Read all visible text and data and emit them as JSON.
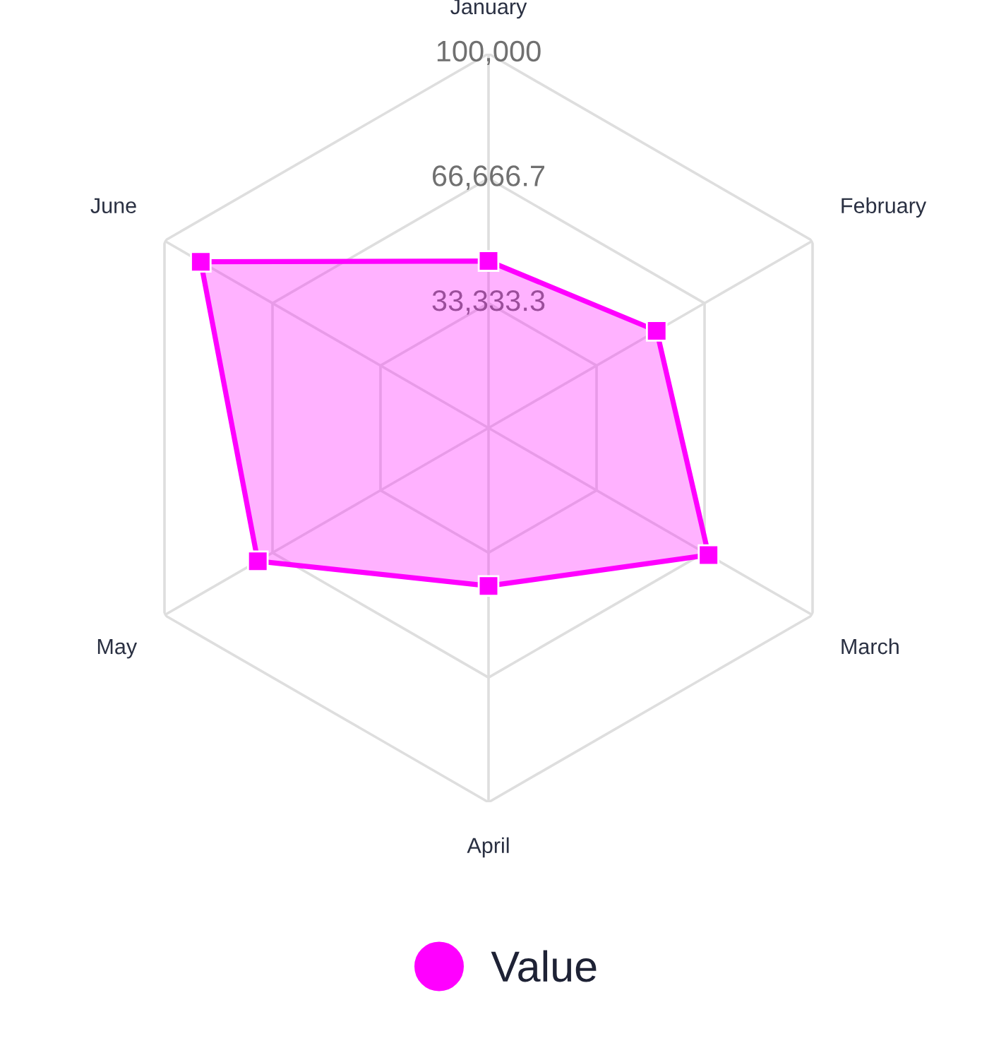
{
  "chart_data": {
    "type": "radar",
    "categories": [
      "January",
      "February",
      "March",
      "April",
      "May",
      "June"
    ],
    "series": [
      {
        "name": "Value",
        "color": "#ff00ff",
        "values": [
          44600,
          51900,
          67900,
          42200,
          71200,
          88800
        ]
      }
    ],
    "ylim": [
      0,
      100000
    ],
    "yticks": [
      {
        "value": 33333.3,
        "label": "33,333.3"
      },
      {
        "value": 66666.7,
        "label": "66,666.7"
      },
      {
        "value": 100000,
        "label": "100,000"
      }
    ],
    "grid": true,
    "marker": "square",
    "legend": "bottom"
  }
}
